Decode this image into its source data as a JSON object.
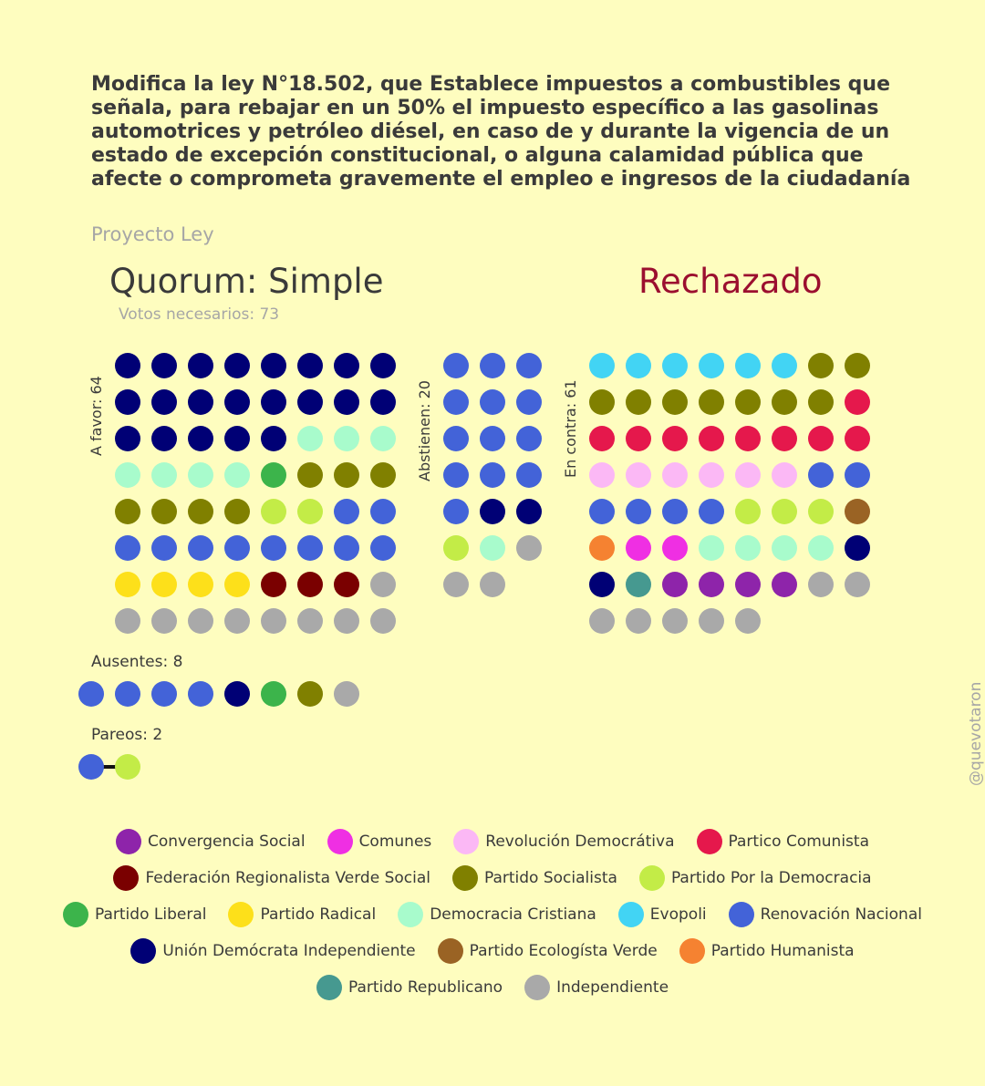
{
  "title": "Modifica la ley N°18.502, que Establece impuestos a combustibles que señala, para rebajar en un 50% el impuesto específico a las gasolinas automotrices y petróleo diésel, en caso de y durante la vigencia de un estado de excepción constitucional, o alguna calamidad pública que afecte o comprometa gravemente el empleo e ingresos de la ciudadanía",
  "subtitle": "Proyecto Ley",
  "quorum": "Quorum: Simple",
  "result": "Rechazado",
  "votes_needed": "Votos necesarios: 73",
  "watermark": "@quevotaron",
  "colors": {
    "CS": "#8e24aa",
    "COM": "#ef2fe3",
    "RD": "#fbb8f5",
    "PC": "#e5184c",
    "FRVS": "#7a0000",
    "PS": "#808000",
    "PPD": "#c3ec47",
    "PL": "#3cb44b",
    "PR": "#fde01a",
    "DC": "#a8fbcc",
    "EVO": "#42d4f4",
    "RN": "#4363d8",
    "UDI": "#000075",
    "PEV": "#9a6324",
    "PH": "#f58231",
    "REP": "#469990",
    "IND": "#a9a9a9"
  },
  "chart_data": {
    "type": "waffle",
    "groups": [
      {
        "label": "A favor: 64",
        "count": 64,
        "dots": [
          "UDI",
          "UDI",
          "UDI",
          "UDI",
          "UDI",
          "UDI",
          "UDI",
          "UDI",
          "UDI",
          "UDI",
          "UDI",
          "UDI",
          "UDI",
          "UDI",
          "UDI",
          "UDI",
          "UDI",
          "UDI",
          "UDI",
          "UDI",
          "UDI",
          "DC",
          "DC",
          "DC",
          "DC",
          "DC",
          "DC",
          "DC",
          "PL",
          "PS",
          "PS",
          "PS",
          "PS",
          "PS",
          "PS",
          "PS",
          "PPD",
          "PPD",
          "RN",
          "RN",
          "RN",
          "RN",
          "RN",
          "RN",
          "RN",
          "RN",
          "RN",
          "RN",
          "PR",
          "PR",
          "PR",
          "PR",
          "FRVS",
          "FRVS",
          "FRVS",
          "IND",
          "IND",
          "IND",
          "IND",
          "IND",
          "IND",
          "IND",
          "IND",
          "IND"
        ]
      },
      {
        "label": "Abstienen: 20",
        "count": 20,
        "dots": [
          "RN",
          "RN",
          "RN",
          "RN",
          "RN",
          "RN",
          "RN",
          "RN",
          "RN",
          "RN",
          "RN",
          "RN",
          "RN",
          "UDI",
          "UDI",
          "PPD",
          "DC",
          "IND",
          "IND",
          "IND"
        ]
      },
      {
        "label": "En contra: 61",
        "count": 61,
        "dots": [
          "EVO",
          "EVO",
          "EVO",
          "EVO",
          "EVO",
          "EVO",
          "PS",
          "PS",
          "PS",
          "PS",
          "PS",
          "PS",
          "PS",
          "PS",
          "PS",
          "PC",
          "PC",
          "PC",
          "PC",
          "PC",
          "PC",
          "PC",
          "PC",
          "PC",
          "RD",
          "RD",
          "RD",
          "RD",
          "RD",
          "RD",
          "RN",
          "RN",
          "RN",
          "RN",
          "RN",
          "RN",
          "PPD",
          "PPD",
          "PPD",
          "PEV",
          "PH",
          "COM",
          "COM",
          "DC",
          "DC",
          "DC",
          "DC",
          "UDI",
          "UDI",
          "REP",
          "CS",
          "CS",
          "CS",
          "CS",
          "IND",
          "IND",
          "IND",
          "IND",
          "IND",
          "IND",
          "IND"
        ]
      }
    ],
    "absent": {
      "label": "Ausentes: 8",
      "dots": [
        "RN",
        "RN",
        "RN",
        "RN",
        "UDI",
        "PL",
        "PS",
        "IND"
      ]
    },
    "pairs": {
      "label": "Pareos: 2",
      "dots": [
        "RN",
        "PPD"
      ]
    },
    "legend": [
      [
        "CS",
        "Convergencia Social"
      ],
      [
        "COM",
        "Comunes"
      ],
      [
        "RD",
        "Revolución Democrátiva"
      ],
      [
        "PC",
        "Partico Comunista"
      ],
      [
        "FRVS",
        "Federación Regionalista Verde Social"
      ],
      [
        "PS",
        "Partido Socialista"
      ],
      [
        "PPD",
        "Partido Por la Democracia"
      ],
      [
        "PL",
        "Partido Liberal"
      ],
      [
        "PR",
        "Partido Radical"
      ],
      [
        "DC",
        "Democracia Cristiana"
      ],
      [
        "EVO",
        "Evopoli"
      ],
      [
        "RN",
        "Renovación Nacional"
      ],
      [
        "UDI",
        "Unión Demócrata Independiente"
      ],
      [
        "PEV",
        "Partido Ecologísta Verde"
      ],
      [
        "PH",
        "Partido Humanista"
      ],
      [
        "REP",
        "Partido Republicano"
      ],
      [
        "IND",
        "Independiente"
      ]
    ]
  }
}
